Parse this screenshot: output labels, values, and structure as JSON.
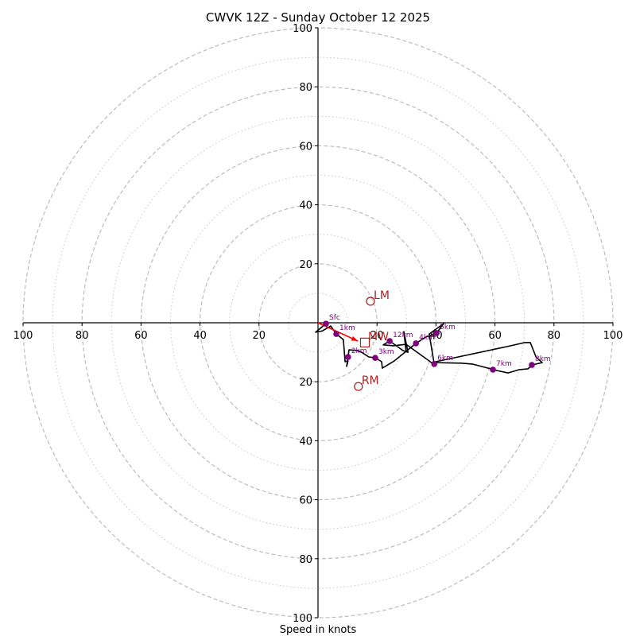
{
  "chart_data": {
    "type": "line",
    "subtype": "hodograph",
    "title": "CWVK 12Z - Sunday October 12 2025",
    "xlabel": "Speed in knots",
    "ylabel": "",
    "units": "knots",
    "range": [
      -100,
      100
    ],
    "grid": true,
    "rings_dashed": [
      20,
      40,
      60,
      80,
      100
    ],
    "rings_dotted": [
      10,
      30,
      50,
      70,
      90
    ],
    "x_ticks": [
      {
        "value": -100,
        "label": "100"
      },
      {
        "value": -80,
        "label": "80"
      },
      {
        "value": -60,
        "label": "60"
      },
      {
        "value": -40,
        "label": "40"
      },
      {
        "value": -20,
        "label": "20"
      },
      {
        "value": 20,
        "label": "20"
      },
      {
        "value": 40,
        "label": "40"
      },
      {
        "value": 60,
        "label": "60"
      },
      {
        "value": 80,
        "label": "80"
      },
      {
        "value": 100,
        "label": "100"
      }
    ],
    "y_ticks": [
      {
        "value": 100,
        "label": "100"
      },
      {
        "value": 80,
        "label": "80"
      },
      {
        "value": 60,
        "label": "60"
      },
      {
        "value": 40,
        "label": "40"
      },
      {
        "value": 20,
        "label": "20"
      },
      {
        "value": -20,
        "label": "20"
      },
      {
        "value": -40,
        "label": "40"
      },
      {
        "value": -60,
        "label": "60"
      },
      {
        "value": -80,
        "label": "80"
      },
      {
        "value": -100,
        "label": "100"
      }
    ],
    "profile": {
      "name": "wind profile (u,v)",
      "color": "#000000",
      "points": [
        [
          2.7,
          -0.3
        ],
        [
          -0.8,
          -3.2
        ],
        [
          1.4,
          -2.8
        ],
        [
          4.3,
          -1.1
        ],
        [
          6.2,
          -3.8
        ],
        [
          8.6,
          -5.7
        ],
        [
          9.2,
          -13.2
        ],
        [
          10.2,
          -12.9
        ],
        [
          9.7,
          -14.8
        ],
        [
          10.2,
          -11.6
        ],
        [
          10.5,
          -9.2
        ],
        [
          13.5,
          -9.4
        ],
        [
          15.1,
          -10.2
        ],
        [
          17.2,
          -11.6
        ],
        [
          19.4,
          -11.9
        ],
        [
          21.6,
          -13.2
        ],
        [
          21.8,
          -15.4
        ],
        [
          25.9,
          -12.9
        ],
        [
          30.2,
          -9.4
        ],
        [
          33.2,
          -7.0
        ],
        [
          36.4,
          -4.9
        ],
        [
          40.2,
          -3.5
        ],
        [
          42.6,
          -0.3
        ],
        [
          37.7,
          -3.8
        ],
        [
          39.4,
          -14.0
        ],
        [
          38.8,
          -13.5
        ],
        [
          48.5,
          -13.7
        ],
        [
          52.3,
          -14.0
        ],
        [
          58.5,
          -15.6
        ],
        [
          59.3,
          -15.9
        ],
        [
          64.4,
          -17.0
        ],
        [
          68.2,
          -15.9
        ],
        [
          71.2,
          -15.6
        ],
        [
          72.5,
          -14.3
        ],
        [
          76.0,
          -13.5
        ],
        [
          73.9,
          -11.6
        ],
        [
          72.0,
          -6.7
        ],
        [
          70.1,
          -6.7
        ],
        [
          63.9,
          -8.1
        ],
        [
          38.5,
          -13.5
        ],
        [
          29.9,
          -7.3
        ],
        [
          25.6,
          -7.8
        ],
        [
          22.1,
          -7.5
        ],
        [
          24.3,
          -6.2
        ],
        [
          28.8,
          -9.4
        ],
        [
          30.5,
          -10.0
        ],
        [
          29.1,
          -3.0
        ],
        [
          29.9,
          -10.0
        ]
      ]
    },
    "height_markers": [
      {
        "label": "Sfc",
        "u": 2.7,
        "v": -0.3
      },
      {
        "label": "1km",
        "u": 6.2,
        "v": -3.8
      },
      {
        "label": "2km",
        "u": 10.2,
        "v": -11.6
      },
      {
        "label": "3km",
        "u": 19.4,
        "v": -11.9
      },
      {
        "label": "4km",
        "u": 33.2,
        "v": -7.0
      },
      {
        "label": "5km",
        "u": 40.2,
        "v": -3.5
      },
      {
        "label": "6km",
        "u": 39.4,
        "v": -14.0
      },
      {
        "label": "7km",
        "u": 59.3,
        "v": -15.9
      },
      {
        "label": "8km",
        "u": 72.5,
        "v": -14.3
      },
      {
        "label": "12km",
        "u": 24.3,
        "v": -6.2
      }
    ],
    "storm_motion": {
      "shear_vector": {
        "from": [
          0,
          0
        ],
        "to": [
          13.5,
          -6.2
        ],
        "color": "#ff0000"
      },
      "markers": [
        {
          "label": "LM",
          "u": 17.8,
          "v": 7.3,
          "shape": "circle"
        },
        {
          "label": "RM",
          "u": 13.7,
          "v": -21.6,
          "shape": "circle"
        },
        {
          "label": "MW",
          "u": 15.9,
          "v": -6.7,
          "shape": "square"
        }
      ],
      "color": "#b22222"
    },
    "marker_color": "#800080"
  }
}
